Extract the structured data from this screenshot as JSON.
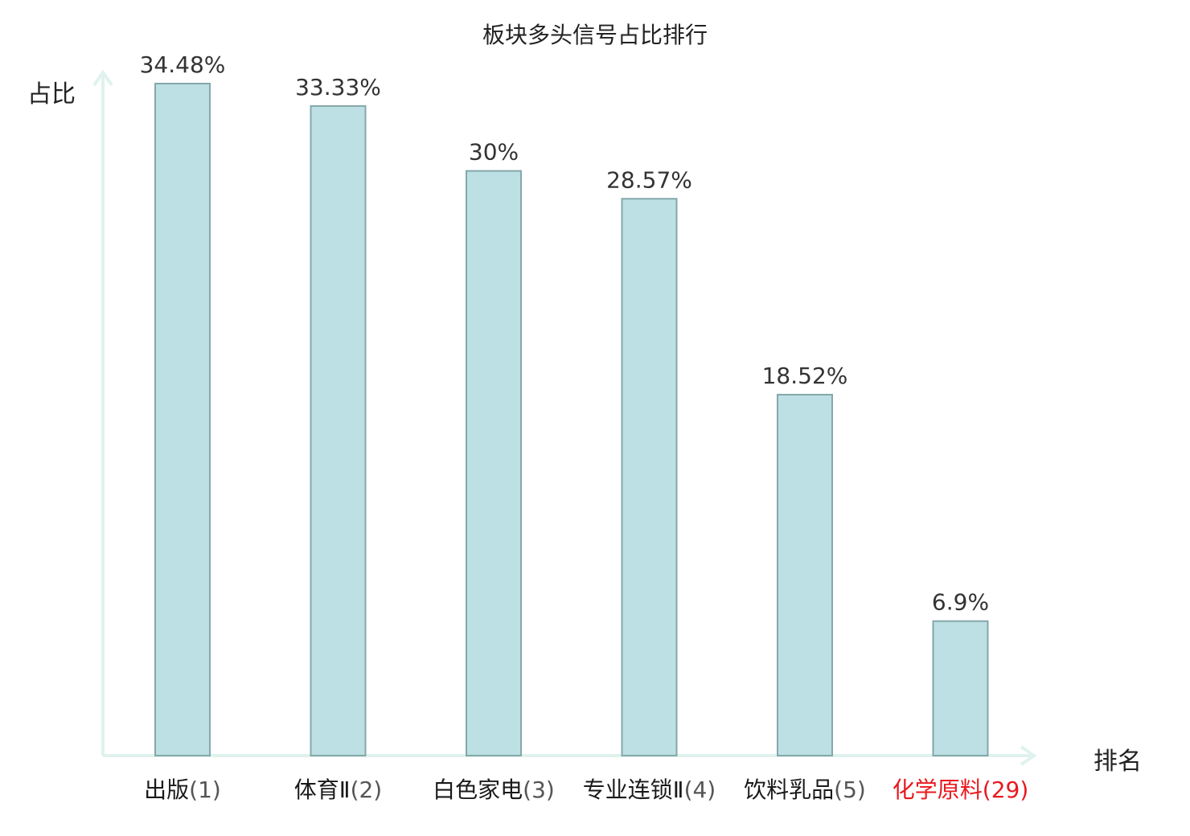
{
  "chart_data": {
    "type": "bar",
    "title": "板块多头信号占比排行",
    "ylabel": "占比",
    "xlabel": "排名",
    "ylim": [
      0,
      36
    ],
    "grid": false,
    "categories": [
      "出版(1)",
      "体育Ⅱ(2)",
      "白色家电(3)",
      "专业连锁Ⅱ(4)",
      "饮料乳品(5)",
      "化学原料(29)"
    ],
    "category_names": [
      "出版",
      "体育Ⅱ",
      "白色家电",
      "专业连锁Ⅱ",
      "饮料乳品",
      "化学原料"
    ],
    "category_ranks": [
      "(1)",
      "(2)",
      "(3)",
      "(4)",
      "(5)",
      "(29)"
    ],
    "values": [
      34.48,
      33.33,
      30,
      28.57,
      18.52,
      6.9
    ],
    "value_labels": [
      "34.48%",
      "33.33%",
      "30%",
      "28.57%",
      "18.52%",
      "6.9%"
    ],
    "highlighted_category_index": 5
  },
  "colors": {
    "bar_fill": "#bce0e3",
    "bar_stroke": "#85a7aa",
    "axis": "#dff2ee",
    "highlight": "#e8191e"
  }
}
